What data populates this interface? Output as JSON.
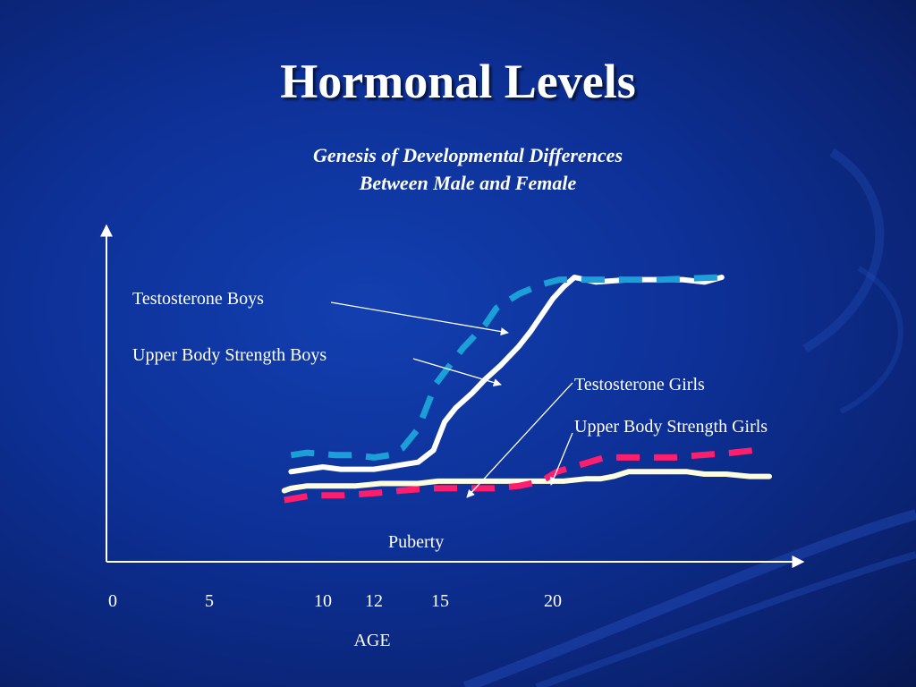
{
  "slide": {
    "title": "Hormonal Levels",
    "subtitle_line1": "Genesis of Developmental Differences",
    "subtitle_line2": "Between Male and Female"
  },
  "colors": {
    "testosterone_boys": "#1a9fd6",
    "upper_body_strength_boys": "#ffffff",
    "testosterone_girls": "#fffde0",
    "upper_body_strength_girls": "#ff1e6e",
    "axes": "#ffffff"
  },
  "chart_data": {
    "type": "line",
    "title": "Hormonal Levels",
    "xlabel": "AGE",
    "ylabel": "",
    "x_ticks": [
      0,
      5,
      10,
      12,
      15,
      20
    ],
    "xlim": [
      0,
      30
    ],
    "ylim": [
      0,
      100
    ],
    "y_ticks": [],
    "grid": false,
    "legend": "none",
    "annotations": [
      "Puberty"
    ],
    "series": [
      {
        "name": "Testosterone Boys",
        "style": "dashed",
        "x": [
          8.6,
          9.3,
          10.5,
          11.3,
          12.0,
          12.7,
          13.3,
          14.0,
          14.8,
          16.0,
          17.0,
          17.5,
          18.5,
          19.5,
          20.3,
          21.0,
          23.0,
          25.0,
          27.7
        ],
        "y": [
          25,
          26,
          25,
          25,
          24,
          25,
          28,
          36,
          55,
          70,
          80,
          87,
          93,
          97,
          99,
          99,
          99,
          99,
          100
        ]
      },
      {
        "name": "Upper Body Strength Boys",
        "style": "solid",
        "x": [
          8.6,
          9.3,
          10.0,
          10.7,
          11.3,
          12.0,
          12.7,
          13.3,
          14.0,
          14.7,
          15.2,
          15.7,
          16.4,
          17.0,
          17.7,
          18.5,
          19.0,
          19.5,
          20.0,
          20.5,
          21.0,
          22.0,
          23.5,
          25.0,
          26.0,
          27.0,
          27.8
        ],
        "y": [
          18,
          19,
          20,
          19,
          19,
          19,
          20,
          21,
          22,
          27,
          39,
          45,
          51,
          57,
          63,
          71,
          77,
          84,
          91,
          96,
          100,
          98,
          99,
          99,
          99,
          98,
          100
        ]
      },
      {
        "name": "Testosterone Girls",
        "style": "solid",
        "x": [
          8.3,
          8.6,
          9.3,
          10.4,
          11.3,
          12.3,
          13.2,
          14.0,
          14.9,
          15.8,
          16.8,
          17.8,
          18.8,
          19.7,
          20.5,
          21.5,
          22.2,
          22.8,
          23.5,
          24.5,
          25.2,
          26.2,
          27.0,
          28.0,
          29.1,
          30.0
        ],
        "y": [
          10,
          11,
          12,
          12,
          12,
          13,
          13,
          13,
          14,
          14,
          14,
          14,
          14,
          14,
          14,
          15,
          15,
          16,
          18,
          18,
          18,
          18,
          17,
          17,
          16,
          16
        ]
      },
      {
        "name": "Upper Body Strength Girls",
        "style": "dashed",
        "x": [
          8.3,
          9.5,
          10.8,
          12.1,
          13.2,
          14.5,
          16.0,
          17.4,
          18.5,
          19.5,
          20.2,
          21.3,
          22.4,
          24.0,
          25.6,
          26.8,
          28.3,
          29.3
        ],
        "y": [
          6,
          8,
          8,
          9,
          10,
          11,
          11,
          11,
          12,
          14,
          18,
          21,
          24,
          24,
          24,
          25,
          26,
          27
        ]
      }
    ]
  },
  "labels": {
    "testosterone_boys": "Testosterone Boys",
    "upper_body_strength_boys": "Upper Body Strength Boys",
    "testosterone_girls": "Testosterone Girls",
    "upper_body_strength_girls": "Upper Body Strength Girls",
    "puberty": "Puberty",
    "age": "AGE"
  }
}
